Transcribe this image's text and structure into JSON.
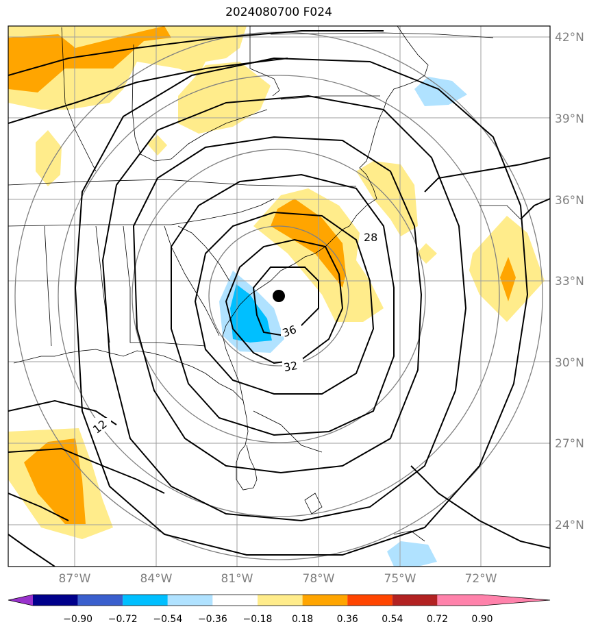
{
  "title": "2024080700 F024",
  "map": {
    "lat_labels": [
      "42°N",
      "39°N",
      "36°N",
      "33°N",
      "30°N",
      "27°N",
      "24°N"
    ],
    "lon_labels": [
      "87°W",
      "84°W",
      "81°W",
      "78°W",
      "75°W",
      "72°W"
    ],
    "contour_labels": [
      "28",
      "36",
      "32",
      "12"
    ]
  },
  "colorbar": {
    "ticks": [
      "−0.90",
      "−0.72",
      "−0.54",
      "−0.36",
      "−0.18",
      "0.18",
      "0.36",
      "0.54",
      "0.72",
      "0.90"
    ],
    "colors": [
      "#9932cc",
      "#00008b",
      "#3a5fcd",
      "#00bfff",
      "#b0e2ff",
      "#ffffff",
      "#ffec8b",
      "#ffa500",
      "#ff4500",
      "#b22222",
      "#ff82ab"
    ]
  }
}
